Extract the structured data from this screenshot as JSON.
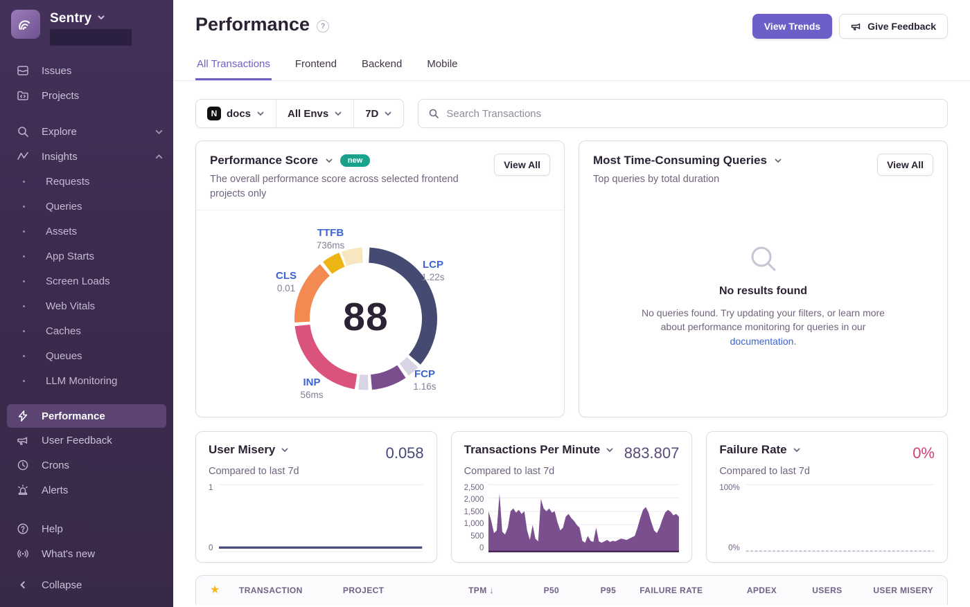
{
  "colors": {
    "accent": "#6C5FC7",
    "badge_teal": "#17A38C",
    "link_blue": "#3C63D2",
    "area_purple": "#7B4F8E",
    "value_navy": "#444A77",
    "value_purple": "#5A4B77",
    "value_pink": "#D2407A",
    "star_gold": "#F5B91E"
  },
  "sidebar": {
    "brand": "Sentry",
    "primary": [
      {
        "label": "Issues",
        "icon": "issues-icon"
      },
      {
        "label": "Projects",
        "icon": "projects-icon"
      }
    ],
    "explore": {
      "label": "Explore",
      "icon": "search-icon"
    },
    "insights": {
      "label": "Insights",
      "icon": "insights-icon"
    },
    "insights_children": [
      "Requests",
      "Queries",
      "Assets",
      "App Starts",
      "Screen Loads",
      "Web Vitals",
      "Caches",
      "Queues",
      "LLM Monitoring"
    ],
    "tools": [
      {
        "label": "Performance",
        "icon": "performance-icon",
        "active": true
      },
      {
        "label": "User Feedback",
        "icon": "megaphone-icon"
      },
      {
        "label": "Crons",
        "icon": "clock-icon"
      },
      {
        "label": "Alerts",
        "icon": "siren-icon"
      }
    ],
    "support": [
      {
        "label": "Help",
        "icon": "help-icon"
      },
      {
        "label": "What's new",
        "icon": "broadcast-icon"
      }
    ],
    "collapse": "Collapse"
  },
  "header": {
    "title": "Performance",
    "view_trends": "View Trends",
    "give_feedback": "Give Feedback"
  },
  "tabs": [
    "All Transactions",
    "Frontend",
    "Backend",
    "Mobile"
  ],
  "active_tab": "All Transactions",
  "filters": {
    "project": "docs",
    "environment": "All Envs",
    "period": "7D",
    "search_placeholder": "Search Transactions"
  },
  "cards": {
    "performance_score": {
      "title": "Performance Score",
      "badge": "new",
      "description": "The overall performance score across selected frontend projects only",
      "view_all": "View All"
    },
    "queries": {
      "title": "Most Time-Consuming Queries",
      "subtitle": "Top queries by total duration",
      "view_all": "View All",
      "empty": {
        "title": "No results found",
        "body_before_link": "No queries found. Try updating your filters, or learn more about performance monitoring for queries in our ",
        "link_text": "documentation",
        "body_after_link": "."
      }
    },
    "user_misery": {
      "title": "User Misery",
      "compared": "Compared to last 7d"
    },
    "tpm": {
      "title": "Transactions Per Minute",
      "compared": "Compared to last 7d"
    },
    "failure_rate": {
      "title": "Failure Rate",
      "compared": "Compared to last 7d"
    }
  },
  "chart_data": [
    {
      "id": "web_vitals_ring",
      "type": "donut",
      "score": "88",
      "vitals": [
        {
          "name": "TTFB",
          "value": "736ms"
        },
        {
          "name": "LCP",
          "value": "1.22s"
        },
        {
          "name": "FCP",
          "value": "1.16s"
        },
        {
          "name": "INP",
          "value": "56ms"
        },
        {
          "name": "CLS",
          "value": "0.01"
        }
      ],
      "segments": [
        {
          "label": "LCP",
          "from": 3,
          "to": 130,
          "color": "#454A73"
        },
        {
          "label": "LCP-remainder",
          "from": 133,
          "to": 143,
          "color": "#D8D4E3"
        },
        {
          "label": "FCP",
          "from": 146,
          "to": 175,
          "color": "#7A4E8C"
        },
        {
          "label": "FCP-remainder",
          "from": 178,
          "to": 186,
          "color": "#D8D4E3"
        },
        {
          "label": "INP",
          "from": 189,
          "to": 264,
          "color": "#D9537C"
        },
        {
          "label": "CLS",
          "from": 267,
          "to": 320,
          "color": "#F28A52"
        },
        {
          "label": "TTFB",
          "from": 323,
          "to": 338,
          "color": "#EDB513"
        },
        {
          "label": "TTFB-remainder",
          "from": 340,
          "to": 357,
          "color": "#F8E7BE"
        }
      ]
    },
    {
      "id": "user_misery",
      "type": "line",
      "title": "User Misery",
      "value_label": "0.058",
      "value": 0.058,
      "ylim": [
        0,
        1
      ],
      "yticks": [
        "1",
        "0"
      ],
      "line_color": "#444A77"
    },
    {
      "id": "transactions_per_minute",
      "type": "area",
      "title": "Transactions Per Minute",
      "value_label": "883.807",
      "ylim": [
        0,
        2500
      ],
      "yticks": [
        "2,500",
        "2,000",
        "1,500",
        "1,000",
        "500",
        "0"
      ],
      "fill_color": "#7B4F8E",
      "values": [
        1500,
        1150,
        700,
        800,
        2150,
        750,
        650,
        900,
        1500,
        1600,
        1450,
        1550,
        1400,
        1500,
        800,
        450,
        1000,
        500,
        400,
        1950,
        1600,
        1500,
        1600,
        1450,
        1500,
        1100,
        800,
        900,
        1300,
        1400,
        1250,
        1150,
        1000,
        900,
        420,
        350,
        600,
        420,
        380,
        900,
        400,
        350,
        400,
        450,
        380,
        420,
        400,
        450,
        500,
        480,
        450,
        500,
        550,
        600,
        900,
        1250,
        1550,
        1650,
        1450,
        1100,
        800,
        700,
        900,
        1200,
        1450,
        1550,
        1480,
        1350,
        1400,
        1300
      ]
    },
    {
      "id": "failure_rate",
      "type": "dashed-line",
      "title": "Failure Rate",
      "value_label": "0%",
      "value": 0,
      "ylim": [
        0,
        100
      ],
      "yticks": [
        "100%",
        "0%"
      ],
      "line_color": "#C9C4D3"
    }
  ],
  "table": {
    "headers": [
      {
        "label": "TRANSACTION",
        "align": "left"
      },
      {
        "label": "PROJECT",
        "align": "left"
      },
      {
        "label": "TPM",
        "align": "right",
        "sort": "desc"
      },
      {
        "label": "P50",
        "align": "right"
      },
      {
        "label": "P95",
        "align": "right"
      },
      {
        "label": "FAILURE RATE",
        "align": "right"
      },
      {
        "label": "APDEX",
        "align": "right"
      },
      {
        "label": "USERS",
        "align": "right"
      },
      {
        "label": "USER MISERY",
        "align": "right"
      }
    ]
  }
}
